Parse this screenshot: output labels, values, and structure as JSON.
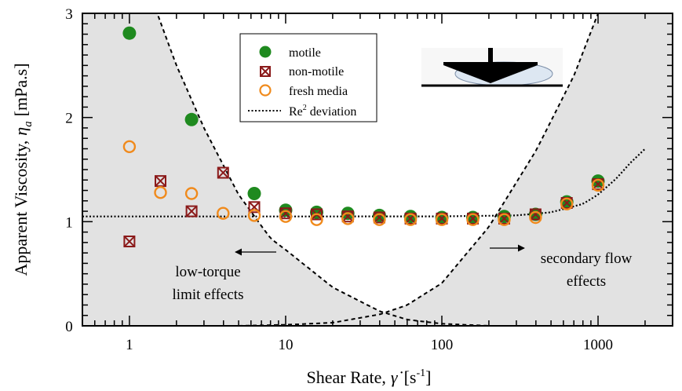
{
  "chart_data": {
    "type": "scatter",
    "xscale": "log",
    "xlim": [
      0.5,
      3000
    ],
    "ylim": [
      0,
      3
    ],
    "xticks": [
      1,
      10,
      100,
      1000
    ],
    "xtick_labels": [
      "1",
      "10",
      "100",
      "1000"
    ],
    "yticks": [
      0,
      1,
      2,
      3
    ],
    "ytick_labels": [
      "0",
      "1",
      "2",
      "3"
    ],
    "xlabel_text": "Shear Rate,",
    "xlabel_symbol": "γ̇",
    "xlabel_unit": "[s",
    "xlabel_unit_exp": "-1",
    "xlabel_unit_close": "]",
    "ylabel_text": "Apparent Viscosity,",
    "ylabel_symbol": "η",
    "ylabel_sub": "a",
    "ylabel_unit": "[mPa.s]",
    "legend_placement": "top-center",
    "series": [
      {
        "name": "motile",
        "marker": "filled-circle",
        "color": "#1f8a1f",
        "x": [
          1,
          2.5,
          6.3,
          10,
          15.8,
          25,
          39.8,
          63,
          100,
          158,
          251,
          398,
          631,
          1000
        ],
        "y": [
          2.81,
          1.98,
          1.27,
          1.11,
          1.09,
          1.08,
          1.06,
          1.05,
          1.04,
          1.04,
          1.05,
          1.07,
          1.19,
          1.39
        ]
      },
      {
        "name": "non-motile",
        "marker": "crossed-square",
        "color": "#8b1a1a",
        "x": [
          1,
          1.58,
          2.5,
          3.98,
          6.3,
          10,
          15.8,
          25,
          39.8,
          63,
          100,
          158,
          251,
          398,
          631,
          1000
        ],
        "y": [
          0.81,
          1.39,
          1.1,
          1.47,
          1.14,
          1.08,
          1.07,
          1.05,
          1.04,
          1.03,
          1.03,
          1.03,
          1.03,
          1.07,
          1.18,
          1.36
        ]
      },
      {
        "name": "fresh media",
        "marker": "open-circle",
        "color": "#f08a1c",
        "x": [
          1,
          1.58,
          2.5,
          3.98,
          6.3,
          10,
          15.8,
          25,
          39.8,
          63,
          100,
          158,
          251,
          398,
          631,
          1000
        ],
        "y": [
          1.72,
          1.28,
          1.27,
          1.08,
          1.06,
          1.05,
          1.02,
          1.03,
          1.02,
          1.02,
          1.02,
          1.02,
          1.02,
          1.04,
          1.17,
          1.35
        ]
      },
      {
        "name": "Re",
        "name_exp": "2",
        "name_suffix": " deviation",
        "marker": "dotted-line",
        "color": "#000000",
        "x": [
          0.5,
          10,
          100,
          300,
          500,
          800,
          1000,
          1300,
          1600,
          2000
        ],
        "y": [
          1.05,
          1.05,
          1.051,
          1.06,
          1.09,
          1.17,
          1.26,
          1.41,
          1.56,
          1.7
        ]
      }
    ],
    "boundary_curves": [
      {
        "id": "low-torque",
        "x": [
          0.5,
          0.8,
          1.2,
          2,
          3,
          5,
          8,
          10,
          20,
          40,
          60,
          100,
          200
        ],
        "y": [
          4.5,
          4.0,
          3.4,
          2.5,
          1.9,
          1.26,
          0.84,
          0.73,
          0.37,
          0.14,
          0.06,
          0.02,
          0.0
        ]
      },
      {
        "id": "secondary-flow",
        "x": [
          5,
          10,
          20,
          40,
          60,
          100,
          200,
          400,
          700,
          1000,
          1500
        ],
        "y": [
          0.0,
          0.01,
          0.03,
          0.11,
          0.2,
          0.41,
          0.95,
          1.68,
          2.4,
          3.0,
          3.6
        ]
      }
    ],
    "annotations": {
      "low_torque_line1": "low-torque",
      "low_torque_line2": "limit effects",
      "secondary_line1": "secondary flow",
      "secondary_line2": "effects"
    }
  }
}
